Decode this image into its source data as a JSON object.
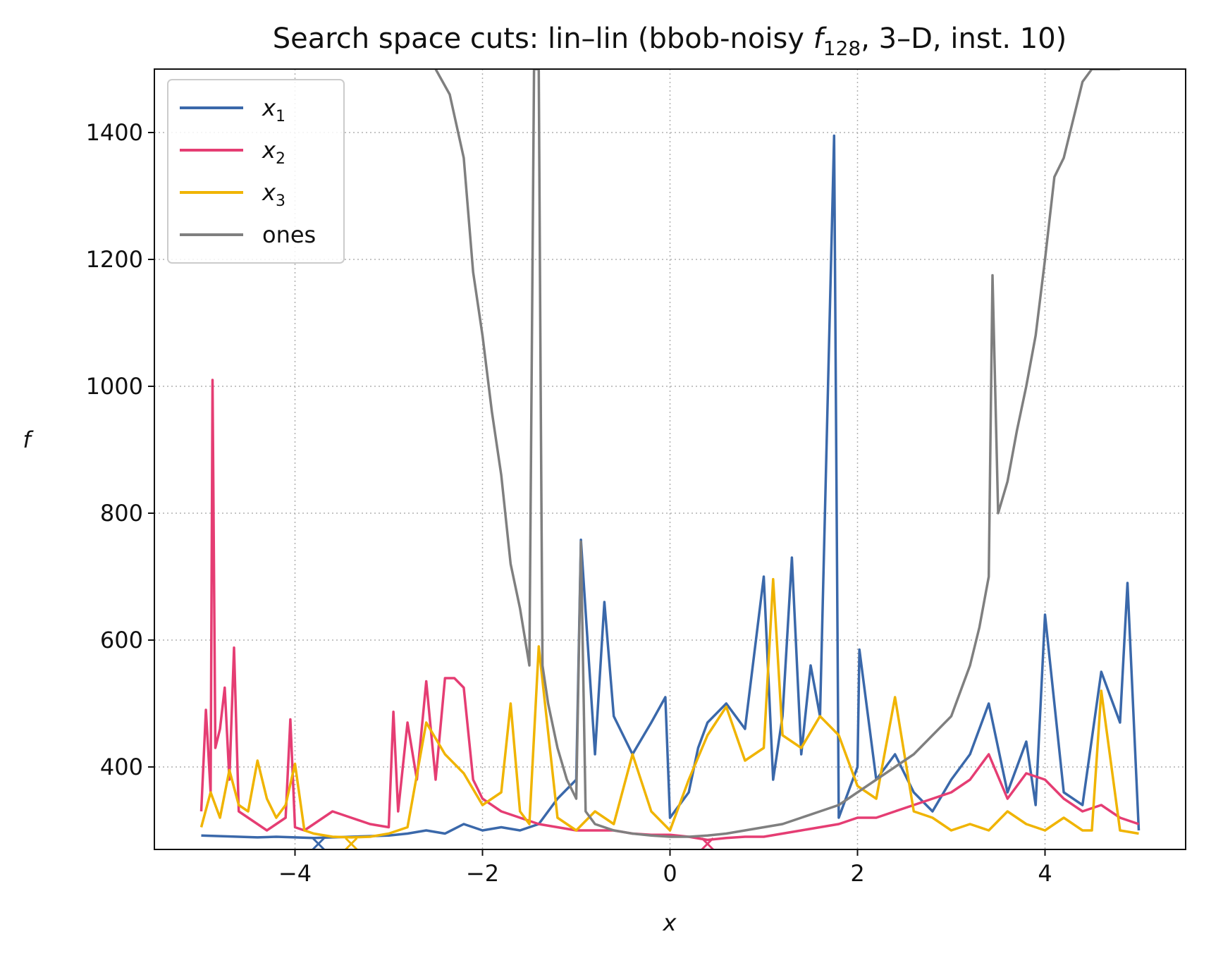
{
  "chart_data": {
    "type": "line",
    "title": "Search space cuts: lin–lin (bbob-noisy f128, 3–D, inst. 10)",
    "title_parts": {
      "before": "Search space cuts: lin–lin (bbob-noisy ",
      "f": "f",
      "sub": "128",
      "after": ", 3–D, inst. 10)"
    },
    "xlabel": "x",
    "ylabel": "f",
    "xlim": [
      -5.5,
      5.5
    ],
    "ylim": [
      270,
      1500
    ],
    "xticks": [
      -4,
      -2,
      0,
      2,
      4
    ],
    "xtick_labels": [
      "−4",
      "−2",
      "0",
      "2",
      "4"
    ],
    "yticks": [
      400,
      600,
      800,
      1000,
      1200,
      1400
    ],
    "ytick_labels": [
      "400",
      "600",
      "800",
      "1000",
      "1200",
      "1400"
    ],
    "grid": true,
    "legend_position": "top-left",
    "series": [
      {
        "name": "x1",
        "legend_base": "x",
        "legend_sub": "1",
        "color": "#3a68aa",
        "x": [
          -5.0,
          -4.8,
          -4.6,
          -4.4,
          -4.2,
          -4.0,
          -3.8,
          -3.6,
          -3.4,
          -3.2,
          -3.0,
          -2.8,
          -2.6,
          -2.4,
          -2.2,
          -2.0,
          -1.8,
          -1.6,
          -1.4,
          -1.2,
          -1.0,
          -0.95,
          -0.8,
          -0.7,
          -0.6,
          -0.4,
          -0.2,
          -0.05,
          0.0,
          0.2,
          0.3,
          0.4,
          0.6,
          0.8,
          1.0,
          1.1,
          1.2,
          1.3,
          1.4,
          1.5,
          1.6,
          1.75,
          1.8,
          2.0,
          2.02,
          2.2,
          2.4,
          2.6,
          2.8,
          3.0,
          3.2,
          3.4,
          3.6,
          3.8,
          3.9,
          4.0,
          4.2,
          4.4,
          4.6,
          4.8,
          4.88,
          5.0
        ],
        "y": [
          292,
          291,
          290,
          289,
          290,
          289,
          288,
          289,
          290,
          291,
          292,
          295,
          300,
          295,
          310,
          300,
          305,
          300,
          310,
          350,
          380,
          758,
          420,
          660,
          480,
          420,
          470,
          510,
          320,
          360,
          430,
          470,
          500,
          460,
          700,
          380,
          480,
          730,
          420,
          560,
          480,
          1395,
          320,
          400,
          585,
          380,
          420,
          360,
          330,
          380,
          420,
          500,
          360,
          440,
          340,
          640,
          360,
          340,
          550,
          470,
          690,
          300
        ]
      },
      {
        "name": "x2",
        "legend_base": "x",
        "legend_sub": "2",
        "color": "#e53d73",
        "x": [
          -5.0,
          -4.95,
          -4.9,
          -4.88,
          -4.85,
          -4.8,
          -4.75,
          -4.7,
          -4.65,
          -4.6,
          -4.5,
          -4.4,
          -4.3,
          -4.2,
          -4.1,
          -4.05,
          -4.0,
          -3.9,
          -3.8,
          -3.6,
          -3.4,
          -3.2,
          -3.0,
          -2.95,
          -2.9,
          -2.8,
          -2.7,
          -2.6,
          -2.5,
          -2.4,
          -2.3,
          -2.2,
          -2.1,
          -2.0,
          -1.8,
          -1.6,
          -1.4,
          -1.2,
          -1.0,
          -0.8,
          -0.6,
          -0.4,
          -0.2,
          0.0,
          0.2,
          0.4,
          0.6,
          0.8,
          1.0,
          1.2,
          1.4,
          1.6,
          1.8,
          2.0,
          2.2,
          2.4,
          2.6,
          2.8,
          3.0,
          3.2,
          3.4,
          3.6,
          3.8,
          4.0,
          4.2,
          4.4,
          4.6,
          4.8,
          5.0
        ],
        "y": [
          330,
          490,
          360,
          1010,
          430,
          460,
          525,
          380,
          588,
          330,
          320,
          310,
          300,
          310,
          320,
          475,
          305,
          300,
          310,
          330,
          320,
          310,
          305,
          487,
          330,
          470,
          380,
          535,
          380,
          540,
          540,
          525,
          380,
          350,
          330,
          320,
          310,
          305,
          300,
          300,
          300,
          295,
          293,
          293,
          290,
          285,
          288,
          290,
          290,
          295,
          300,
          305,
          310,
          320,
          320,
          330,
          340,
          350,
          360,
          380,
          420,
          350,
          390,
          380,
          350,
          330,
          340,
          320,
          310
        ]
      },
      {
        "name": "x3",
        "legend_base": "x",
        "legend_sub": "3",
        "color": "#f0b400",
        "x": [
          -5.0,
          -4.9,
          -4.8,
          -4.7,
          -4.6,
          -4.5,
          -4.4,
          -4.3,
          -4.2,
          -4.1,
          -4.0,
          -3.9,
          -3.8,
          -3.6,
          -3.4,
          -3.2,
          -3.0,
          -2.8,
          -2.6,
          -2.4,
          -2.2,
          -2.0,
          -1.8,
          -1.7,
          -1.6,
          -1.5,
          -1.4,
          -1.2,
          -1.0,
          -0.8,
          -0.6,
          -0.4,
          -0.2,
          0.0,
          0.2,
          0.4,
          0.6,
          0.8,
          1.0,
          1.1,
          1.2,
          1.4,
          1.6,
          1.8,
          2.0,
          2.2,
          2.4,
          2.6,
          2.8,
          3.0,
          3.2,
          3.4,
          3.6,
          3.8,
          4.0,
          4.2,
          4.4,
          4.5,
          4.6,
          4.8,
          5.0
        ],
        "y": [
          305,
          360,
          320,
          395,
          340,
          330,
          410,
          350,
          320,
          340,
          405,
          300,
          295,
          290,
          289,
          290,
          295,
          305,
          470,
          420,
          390,
          340,
          360,
          500,
          330,
          310,
          590,
          320,
          300,
          330,
          310,
          420,
          330,
          300,
          380,
          450,
          495,
          410,
          430,
          696,
          450,
          430,
          480,
          450,
          370,
          350,
          510,
          330,
          320,
          300,
          310,
          300,
          330,
          310,
          300,
          320,
          300,
          300,
          520,
          300,
          295
        ]
      },
      {
        "name": "ones",
        "legend_base": "ones",
        "legend_sub": "",
        "color": "#7f7f7f",
        "x": [
          -2.5,
          -2.35,
          -2.2,
          -2.1,
          -2.0,
          -1.9,
          -1.8,
          -1.7,
          -1.6,
          -1.5,
          -1.45,
          -1.4,
          -1.38,
          -1.36,
          -1.3,
          -1.2,
          -1.1,
          -1.0,
          -0.95,
          -0.9,
          -0.8,
          -0.6,
          -0.4,
          -0.2,
          0.0,
          0.2,
          0.4,
          0.6,
          0.8,
          1.0,
          1.2,
          1.4,
          1.6,
          1.8,
          2.0,
          2.2,
          2.4,
          2.6,
          2.8,
          3.0,
          3.2,
          3.3,
          3.4,
          3.44,
          3.5,
          3.6,
          3.7,
          3.8,
          3.9,
          4.0,
          4.1,
          4.2,
          4.3,
          4.4,
          4.5,
          4.6,
          4.7,
          4.8
        ],
        "y": [
          1500,
          1460,
          1360,
          1180,
          1080,
          960,
          860,
          720,
          650,
          560,
          1500,
          1500,
          1000,
          560,
          500,
          430,
          380,
          350,
          755,
          330,
          310,
          300,
          295,
          292,
          290,
          290,
          292,
          295,
          300,
          305,
          310,
          320,
          330,
          340,
          360,
          380,
          400,
          420,
          450,
          480,
          560,
          620,
          700,
          1175,
          800,
          850,
          930,
          1000,
          1080,
          1200,
          1330,
          1360,
          1420,
          1480,
          1500,
          1500,
          1500,
          1500
        ]
      }
    ]
  },
  "markers": [
    {
      "x": -3.75,
      "color": "#3a68aa"
    },
    {
      "x": 0.4,
      "color": "#e53d73"
    },
    {
      "x": -3.4,
      "color": "#f0b400"
    }
  ]
}
